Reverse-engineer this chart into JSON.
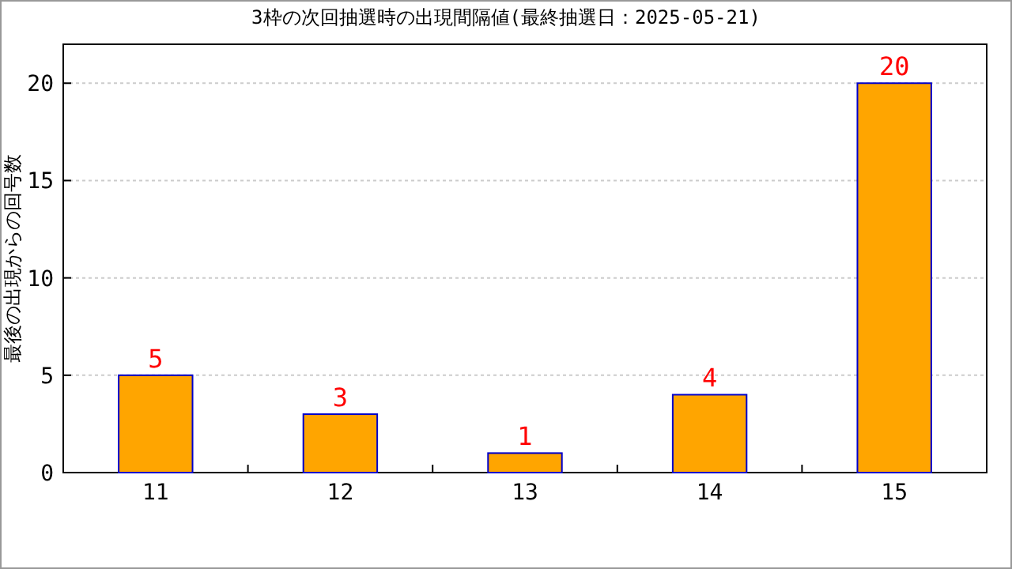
{
  "chart_data": {
    "type": "bar",
    "title": "3枠の次回抽選時の出現間隔値(最終抽選日：2025-05-21)",
    "ylabel": "最後の出現からの回号数",
    "categories": [
      "11",
      "12",
      "13",
      "14",
      "15"
    ],
    "values": [
      5,
      3,
      1,
      4,
      20
    ],
    "color": "#ffa500",
    "ylim": [
      0,
      22
    ],
    "yticks": [
      0,
      5,
      10,
      15,
      20
    ],
    "grid": "y",
    "data_labels": true
  }
}
